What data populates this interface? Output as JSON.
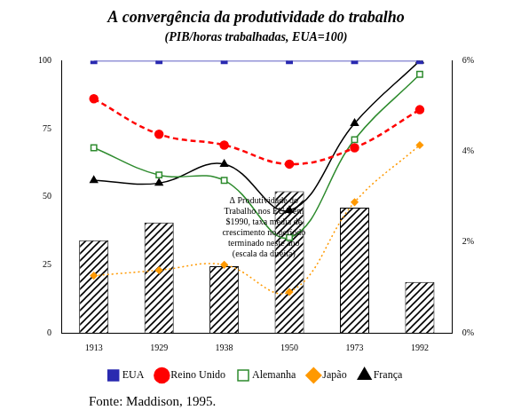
{
  "chart_data": {
    "type": "line",
    "title": "A convergência da produtividade do trabalho",
    "subtitle": "(PIB/horas trabalhadas, EUA=100)",
    "source": "Fonte: Maddison, 1995.",
    "annotation": [
      "Δ Produtividade do",
      "Trabalho nos EUA em",
      "$1990, taxa média de",
      "crescimento no período",
      "terminado neste ano",
      "(escala da direita)"
    ],
    "categories": [
      "1913",
      "1929",
      "1938",
      "1950",
      "1973",
      "1992"
    ],
    "series": [
      {
        "type": "bar",
        "axis": "y2",
        "color": "#000000",
        "values": [
          2.04,
          2.43,
          1.47,
          3.12,
          2.76,
          1.12
        ]
      },
      {
        "name": "EUA",
        "color": "#2a2ab0",
        "marker": "square",
        "line_style": "solid",
        "values": [
          100,
          100,
          100,
          100,
          100,
          100
        ]
      },
      {
        "name": "Reino Unido",
        "color": "#ff0000",
        "marker": "circle",
        "line_style": "dashed",
        "values": [
          86,
          73,
          69,
          62,
          68,
          82
        ]
      },
      {
        "name": "Alemanha",
        "color": "#2e8b2e",
        "marker": "open_square",
        "line_style": "solid",
        "values": [
          68,
          58,
          56,
          35,
          71,
          95
        ]
      },
      {
        "name": "Japão",
        "color": "#ff9900",
        "marker": "diamond",
        "line_style": "dotted",
        "values": [
          21,
          23,
          25,
          15,
          48,
          69
        ]
      },
      {
        "name": "França",
        "color": "#000000",
        "marker": "triangle",
        "line_style": "solid",
        "values": [
          56,
          55,
          62,
          45,
          77,
          100
        ]
      }
    ],
    "ylim": [
      0,
      100
    ],
    "yticks": [
      0,
      25,
      50,
      75,
      100
    ],
    "y2lim": [
      0,
      6
    ],
    "y2ticks": [
      {
        "value": 0,
        "label": "0%"
      },
      {
        "value": 2,
        "label": "2%"
      },
      {
        "value": 4,
        "label": "4%"
      },
      {
        "value": 6,
        "label": "6%"
      }
    ],
    "grid": false,
    "legend": "bottom"
  }
}
